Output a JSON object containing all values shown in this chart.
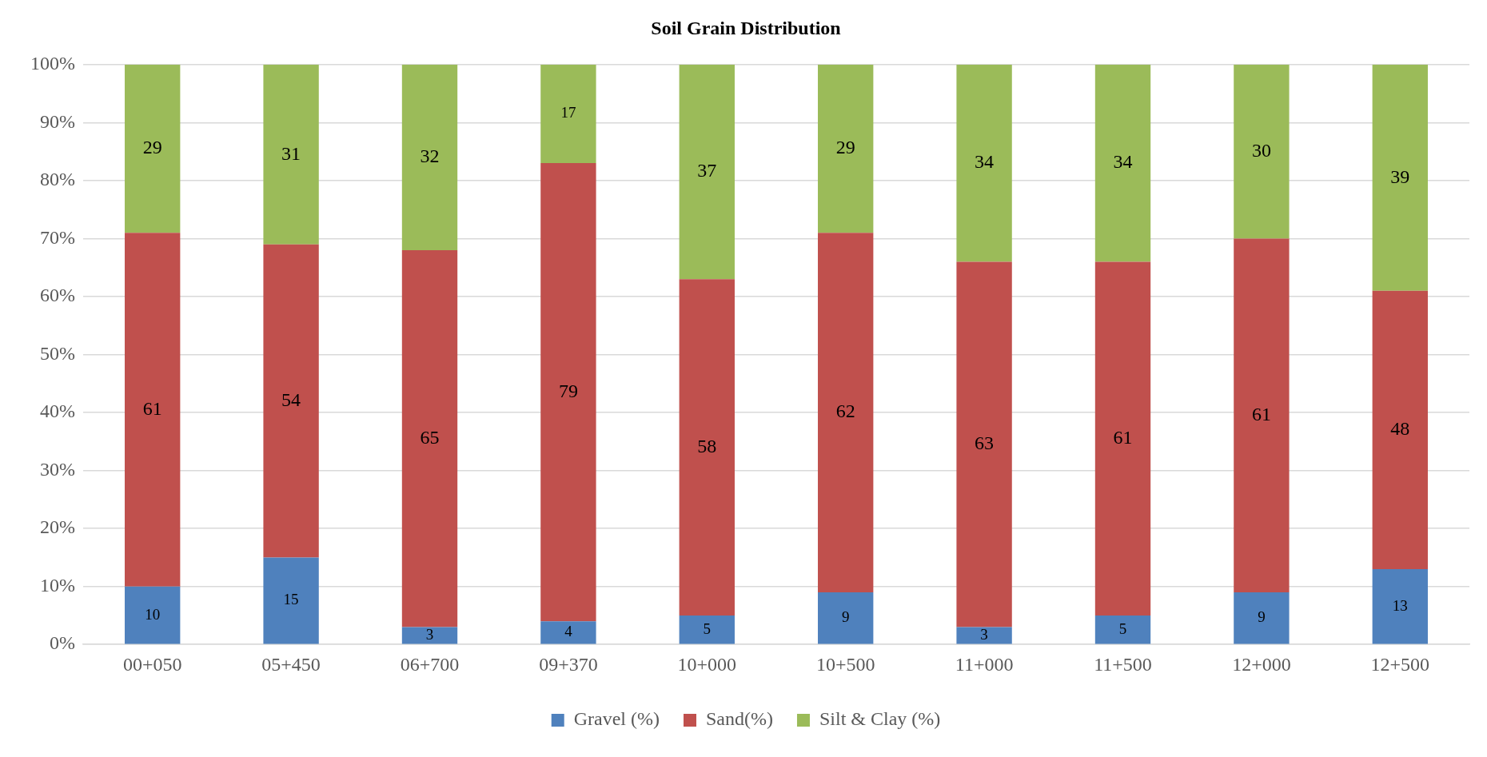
{
  "chart_data": {
    "type": "bar",
    "title": "Soil Grain Distribution",
    "stacked": true,
    "categories": [
      "00+050",
      "05+450",
      "06+700",
      "09+370",
      "10+000",
      "10+500",
      "11+000",
      "11+500",
      "12+000",
      "12+500"
    ],
    "series": [
      {
        "name": "Gravel (%)",
        "color": "#4f81bd",
        "values": [
          10,
          15,
          3,
          4,
          5,
          9,
          3,
          5,
          9,
          13
        ]
      },
      {
        "name": "Sand(%)",
        "color": "#c0504d",
        "values": [
          61,
          54,
          65,
          79,
          58,
          62,
          63,
          61,
          61,
          48
        ]
      },
      {
        "name": "Silt & Clay (%)",
        "color": "#9bbb59",
        "values": [
          29,
          31,
          32,
          17,
          37,
          29,
          34,
          34,
          30,
          39
        ]
      }
    ],
    "ylim": [
      0,
      100
    ],
    "yticks": [
      {
        "value": 0,
        "label": "0%"
      },
      {
        "value": 10,
        "label": "10%"
      },
      {
        "value": 20,
        "label": "20%"
      },
      {
        "value": 30,
        "label": "30%"
      },
      {
        "value": 40,
        "label": "40%"
      },
      {
        "value": 50,
        "label": "50%"
      },
      {
        "value": 60,
        "label": "60%"
      },
      {
        "value": 70,
        "label": "70%"
      },
      {
        "value": 80,
        "label": "80%"
      },
      {
        "value": 90,
        "label": "90%"
      },
      {
        "value": 100,
        "label": "100%"
      }
    ],
    "grid": "y",
    "legend": "bottom",
    "data_labels": true
  }
}
